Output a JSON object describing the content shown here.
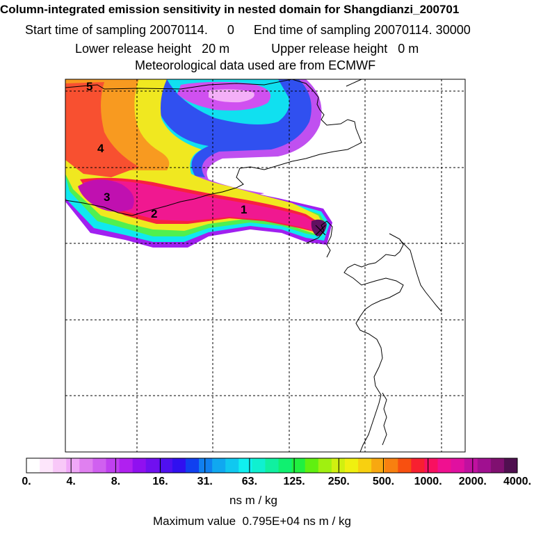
{
  "header": {
    "title": "Column-integrated emission sensitivity in nested domain for Shangdianzi_200701",
    "start_label": "Start time of sampling 20070114.",
    "start_time": "0",
    "end_label": "End time of sampling 20070114. 30000",
    "lower_label": "Lower release height",
    "lower_value": "20 m",
    "upper_label": "Upper release height",
    "upper_value": "0 m",
    "met_line": "Meteorological data used are from ECMWF"
  },
  "chart_data": {
    "type": "heatmap",
    "map_markers": [
      "1",
      "2",
      "3",
      "4",
      "5"
    ],
    "colorbar": {
      "tick_labels": [
        "0.",
        "4.",
        "8.",
        "16.",
        "31.",
        "63.",
        "125.",
        "250.",
        "500.",
        "1000.",
        "2000.",
        "4000."
      ],
      "colors": [
        "#ffffff",
        "#fde6fb",
        "#f8c8f8",
        "#f0a8f8",
        "#e080f0",
        "#d060f0",
        "#c040f0",
        "#b020f0",
        "#9010f0",
        "#7010f0",
        "#5010f0",
        "#3010f0",
        "#1040f0",
        "#1080f0",
        "#10a8f0",
        "#10c8f0",
        "#10f0f0",
        "#10f0d0",
        "#10f0a0",
        "#10f070",
        "#20f040",
        "#60f010",
        "#a0f010",
        "#d0f010",
        "#f0f010",
        "#f8d010",
        "#f8a810",
        "#f88010",
        "#f85010",
        "#f82030",
        "#f81060",
        "#f01090",
        "#e010a0",
        "#c010a0",
        "#a01090",
        "#801070",
        "#501050"
      ],
      "units": "ns m / kg"
    },
    "max_label": "Maximum value",
    "max_value": "0.795E+04 ns m / kg"
  }
}
